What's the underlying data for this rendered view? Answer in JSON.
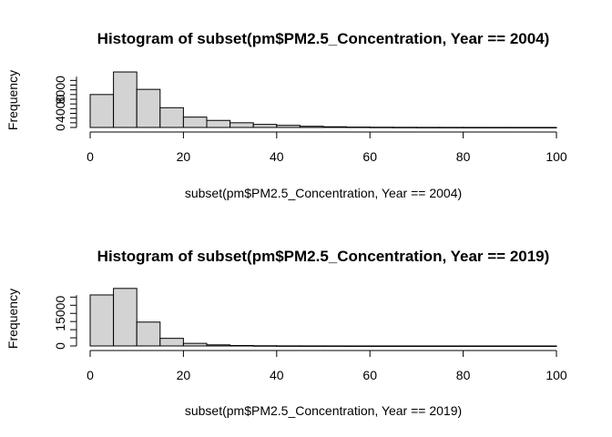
{
  "chart_data": [
    {
      "type": "bar",
      "title": "Histogram of subset(pm$PM2.5_Concentration, Year == 2004)",
      "xlabel": "subset(pm$PM2.5_Concentration, Year == 2004)",
      "ylabel": "Frequency",
      "xlim": [
        0,
        100
      ],
      "ylim": [
        0,
        12000
      ],
      "bin_width": 5,
      "bin_edges": [
        0,
        5,
        10,
        15,
        20,
        25,
        30,
        35,
        40,
        45,
        50,
        55,
        60,
        65,
        70,
        75,
        80,
        85,
        90,
        95,
        100
      ],
      "values": [
        7000,
        11800,
        8100,
        4200,
        2200,
        1500,
        1000,
        650,
        450,
        250,
        150,
        80,
        50,
        30,
        20,
        15,
        10,
        8,
        5,
        3
      ],
      "x_ticks": [
        0,
        20,
        40,
        60,
        80,
        100
      ],
      "y_ticks": [
        0,
        4000,
        8000
      ],
      "bar_fill": "#d3d3d3",
      "grid": false
    },
    {
      "type": "bar",
      "title": "Histogram of subset(pm$PM2.5_Concentration, Year == 2019)",
      "xlabel": "subset(pm$PM2.5_Concentration, Year == 2019)",
      "ylabel": "Frequency",
      "xlim": [
        0,
        100
      ],
      "ylim": [
        0,
        26000
      ],
      "bin_width": 5,
      "bin_edges": [
        0,
        5,
        10,
        15,
        20,
        25,
        30,
        35,
        40,
        45,
        50,
        55,
        60,
        65,
        70,
        75,
        80,
        85,
        90,
        95,
        100
      ],
      "values": [
        23500,
        26500,
        11000,
        3500,
        1200,
        500,
        200,
        100,
        50,
        30,
        20,
        10,
        5,
        5,
        3,
        2,
        2,
        1,
        1,
        1
      ],
      "x_ticks": [
        0,
        20,
        40,
        60,
        80,
        100
      ],
      "y_ticks": [
        0,
        15000
      ],
      "bar_fill": "#d3d3d3",
      "grid": false
    }
  ]
}
